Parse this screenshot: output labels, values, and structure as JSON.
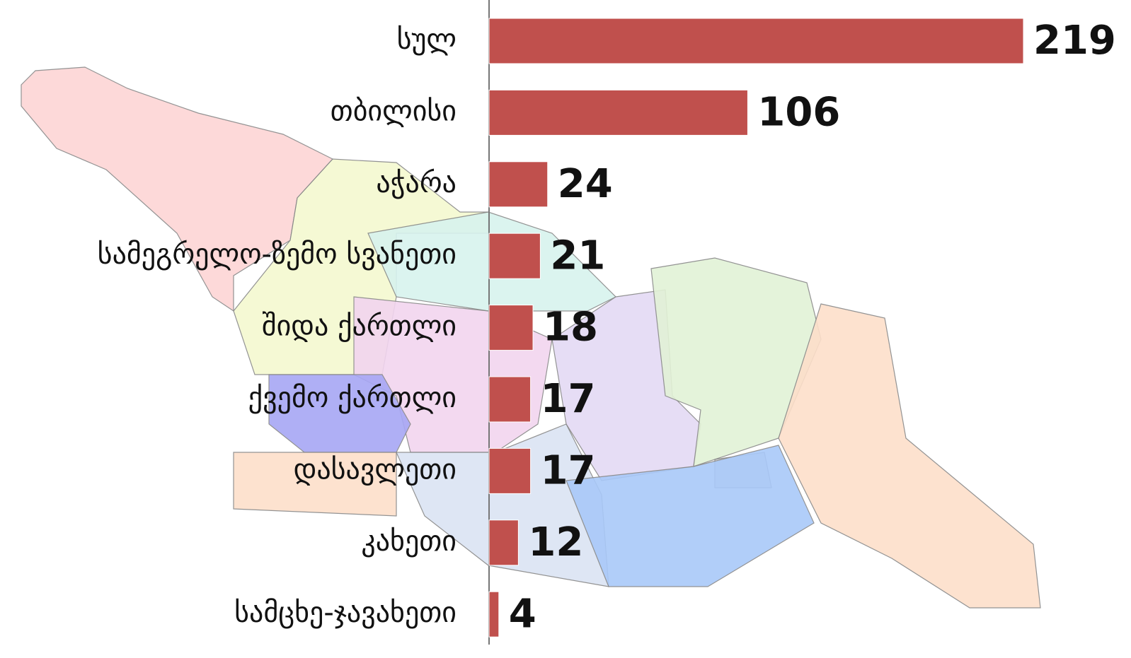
{
  "chart_data": {
    "type": "barh",
    "categories": [
      "სულ",
      "თბილისი",
      "აჭარა",
      "სამეგრელო-ზემო სვანეთი",
      "შიდა ქართლი",
      "ქვემო ქართლი",
      "დასავლეთი",
      "კახეთი",
      "სამცხე-ჯავახეთი"
    ],
    "values": [
      219,
      106,
      24,
      21,
      18,
      17,
      17,
      12,
      4
    ],
    "color": "#c0504d"
  }
}
